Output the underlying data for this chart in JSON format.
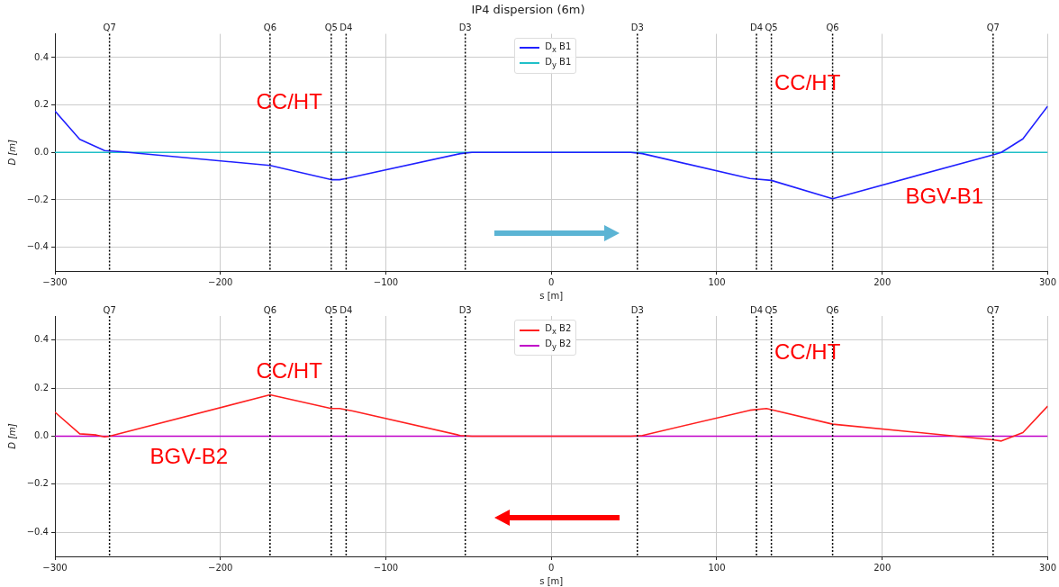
{
  "chart_data": [
    {
      "type": "line",
      "title": "IP4 dispersion (6m)",
      "xlabel": "s [m]",
      "ylabel": "D [m]",
      "xlim": [
        -300,
        300
      ],
      "xticks": [
        -300,
        -200,
        -100,
        0,
        100,
        200,
        300
      ],
      "ylim": [
        -0.5,
        0.5
      ],
      "yticks": [
        -0.4,
        -0.2,
        {
          "value": 0,
          "label": "0.0"
        },
        0.2,
        0.4
      ],
      "grid": true,
      "legend": "top",
      "series": [
        {
          "name": "D$_{x}$ B1",
          "color": "#2020ff",
          "x": [
            -300,
            -285,
            -270,
            -260,
            -170,
            -133,
            -128,
            -124,
            -55,
            -48,
            48,
            55,
            120,
            133,
            170,
            267,
            272,
            285,
            300
          ],
          "values": [
            0.175,
            0.055,
            0.008,
            0.003,
            -0.055,
            -0.115,
            -0.115,
            -0.11,
            -0.005,
            0,
            0,
            -0.005,
            -0.11,
            -0.118,
            -0.195,
            -0.01,
            0,
            0.057,
            0.195
          ]
        },
        {
          "name": "D$_{y}$ B1",
          "color": "#20c0c8",
          "x": [
            -300,
            300
          ],
          "values": [
            0,
            0
          ]
        }
      ],
      "ref_lines": [
        {
          "axis": "x",
          "value": -267,
          "label": "Q7",
          "line_style": "dotted"
        },
        {
          "axis": "x",
          "value": -170,
          "label": "Q6",
          "line_style": "dotted"
        },
        {
          "axis": "x",
          "value": -133,
          "label": "Q5",
          "line_style": "dotted"
        },
        {
          "axis": "x",
          "value": -124,
          "label": "D4",
          "line_style": "dotted"
        },
        {
          "axis": "x",
          "value": -52,
          "label": "D3",
          "line_style": "dotted"
        },
        {
          "axis": "x",
          "value": 52,
          "label": "D3",
          "line_style": "dotted"
        },
        {
          "axis": "x",
          "value": 124,
          "label": "D4",
          "line_style": "dotted"
        },
        {
          "axis": "x",
          "value": 133,
          "label": "Q5",
          "line_style": "dotted"
        },
        {
          "axis": "x",
          "value": 170,
          "label": "Q6",
          "line_style": "dotted"
        },
        {
          "axis": "x",
          "value": 267,
          "label": "Q7",
          "line_style": "dotted"
        }
      ],
      "annotations": [
        "CC/HT",
        "CC/HT",
        "BGV-B1"
      ]
    },
    {
      "type": "line",
      "xlabel": "s [m]",
      "ylabel": "D [m]",
      "xlim": [
        -300,
        300
      ],
      "xticks": [
        -300,
        -200,
        -100,
        0,
        100,
        200,
        300
      ],
      "ylim": [
        -0.5,
        0.5
      ],
      "yticks": [
        -0.4,
        -0.2,
        {
          "value": 0,
          "label": "0.0"
        },
        0.2,
        0.4
      ],
      "grid": true,
      "legend": "top",
      "series": [
        {
          "name": "D$_{x}$ B2",
          "color": "#ff2020",
          "x": [
            -300,
            -285,
            -275,
            -270,
            -267,
            -170,
            -133,
            -128,
            -120,
            -55,
            -48,
            48,
            55,
            120,
            130,
            170,
            267,
            272,
            285,
            300
          ],
          "values": [
            0.1,
            0.01,
            0.005,
            -0.003,
            0,
            0.172,
            0.115,
            0.115,
            0.105,
            0.003,
            0,
            0,
            0.003,
            0.108,
            0.115,
            0.05,
            -0.015,
            -0.02,
            0.015,
            0.125
          ]
        },
        {
          "name": "D$_{y}$ B2",
          "color": "#c000c8",
          "x": [
            -300,
            300
          ],
          "values": [
            0,
            0
          ]
        }
      ],
      "ref_lines": [
        {
          "axis": "x",
          "value": -267,
          "label": "Q7",
          "line_style": "dotted"
        },
        {
          "axis": "x",
          "value": -170,
          "label": "Q6",
          "line_style": "dotted"
        },
        {
          "axis": "x",
          "value": -133,
          "label": "Q5",
          "line_style": "dotted"
        },
        {
          "axis": "x",
          "value": -124,
          "label": "D4",
          "line_style": "dotted"
        },
        {
          "axis": "x",
          "value": -52,
          "label": "D3",
          "line_style": "dotted"
        },
        {
          "axis": "x",
          "value": 52,
          "label": "D3",
          "line_style": "dotted"
        },
        {
          "axis": "x",
          "value": 124,
          "label": "D4",
          "line_style": "dotted"
        },
        {
          "axis": "x",
          "value": 133,
          "label": "Q5",
          "line_style": "dotted"
        },
        {
          "axis": "x",
          "value": 170,
          "label": "Q6",
          "line_style": "dotted"
        },
        {
          "axis": "x",
          "value": 267,
          "label": "Q7",
          "line_style": "dotted"
        }
      ],
      "annotations": [
        "CC/HT",
        "CC/HT",
        "BGV-B2"
      ]
    }
  ]
}
